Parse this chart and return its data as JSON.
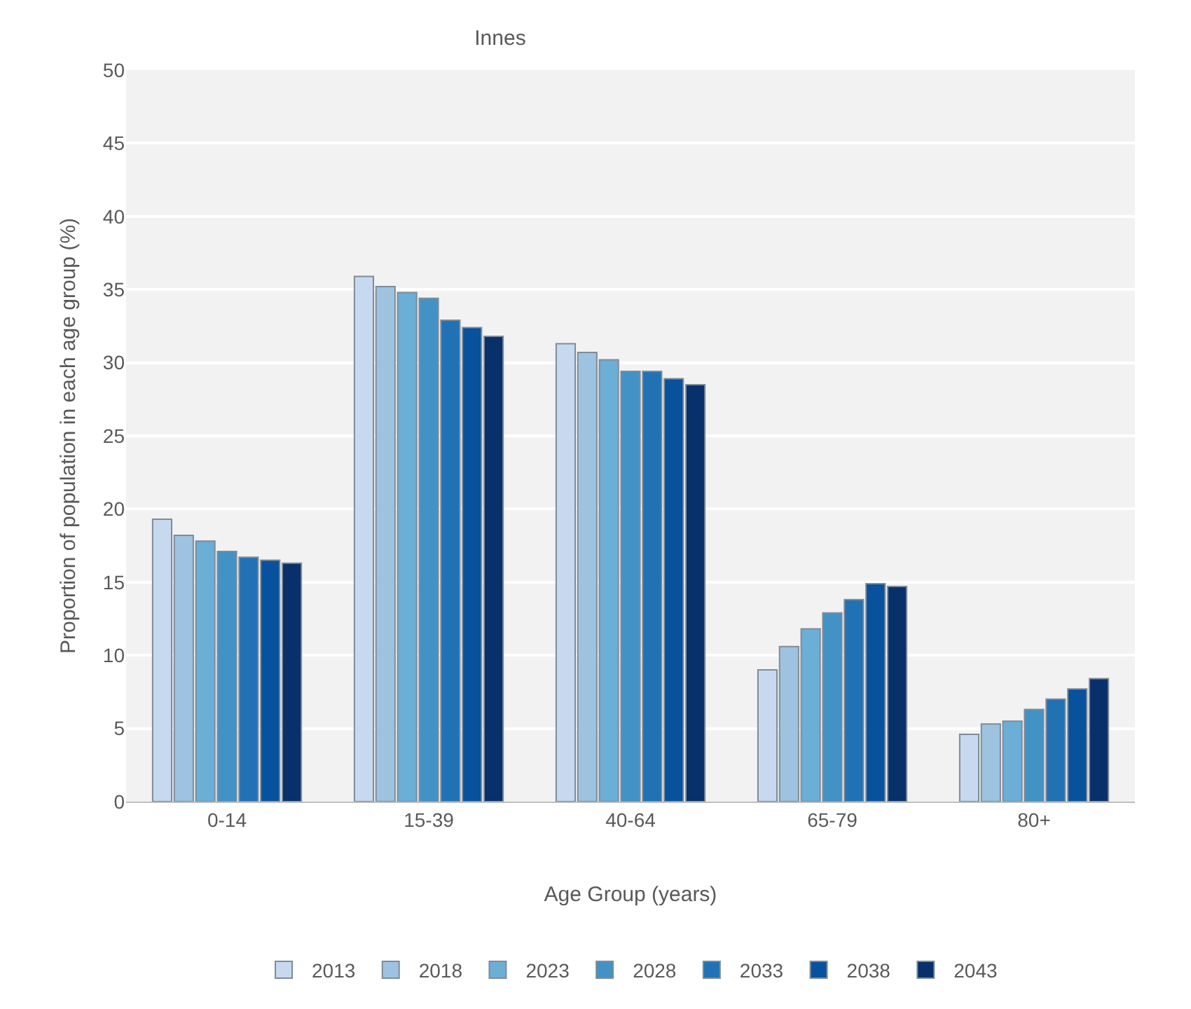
{
  "chart_data": {
    "type": "bar",
    "title": "Innes",
    "xlabel": "Age Group (years)",
    "ylabel": "Proportion of population in each age group (%)",
    "categories": [
      "0-14",
      "15-39",
      "40-64",
      "65-79",
      "80+"
    ],
    "series": [
      {
        "name": "2013",
        "color": "#c6d9ef",
        "values": [
          19.3,
          35.9,
          31.3,
          9.0,
          4.6
        ]
      },
      {
        "name": "2018",
        "color": "#9dc3e0",
        "values": [
          18.2,
          35.2,
          30.7,
          10.6,
          5.3
        ]
      },
      {
        "name": "2023",
        "color": "#6baed6",
        "values": [
          17.8,
          34.8,
          30.2,
          11.8,
          5.5
        ]
      },
      {
        "name": "2028",
        "color": "#4292c6",
        "values": [
          17.1,
          34.4,
          29.4,
          12.9,
          6.3
        ]
      },
      {
        "name": "2033",
        "color": "#2171b5",
        "values": [
          16.7,
          32.9,
          29.4,
          13.8,
          7.0
        ]
      },
      {
        "name": "2038",
        "color": "#08519c",
        "values": [
          16.5,
          32.4,
          28.9,
          14.9,
          7.7
        ]
      },
      {
        "name": "2043",
        "color": "#08306b",
        "values": [
          16.3,
          31.8,
          28.5,
          14.7,
          8.4
        ]
      }
    ],
    "ylim": [
      0,
      50
    ],
    "yticks": [
      0,
      5,
      10,
      15,
      20,
      25,
      30,
      35,
      40,
      45,
      50
    ],
    "grid": "y",
    "legend": "bottom"
  }
}
